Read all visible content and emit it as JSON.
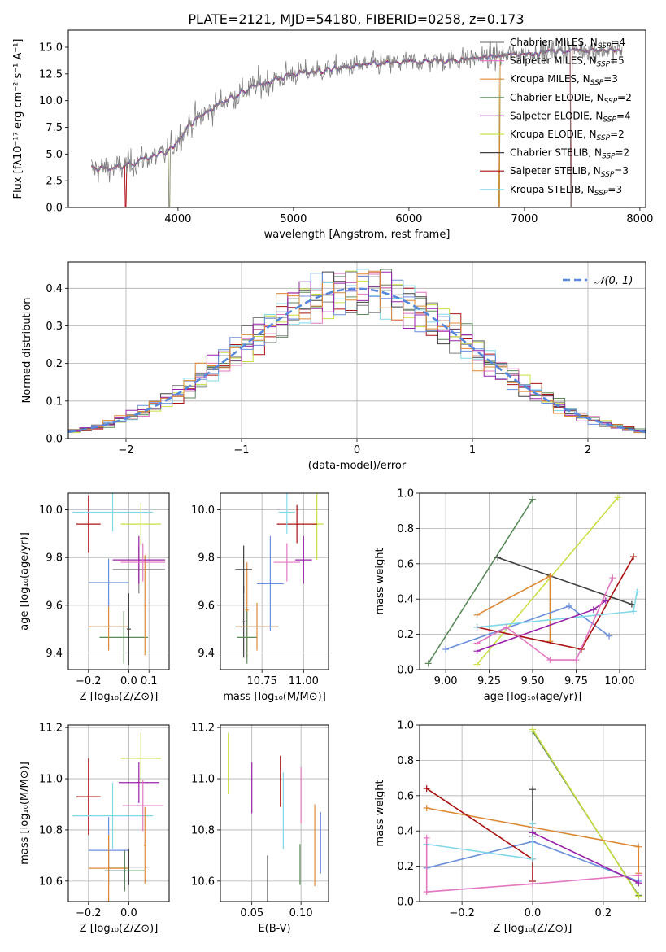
{
  "figure": {
    "title": "PLATE=2121, MJD=54180, FIBERID=0258, z=0.173"
  },
  "colors": {
    "data": "#808080",
    "model_palette": [
      "#808080",
      "#e377c2",
      "#dd8833",
      "#5a8a5a",
      "#9922aa",
      "#ccdd44",
      "#404040",
      "#aa1111",
      "#80d8e8",
      "#6a8fdd"
    ],
    "normal_curve": "#5588dd",
    "grid": "#b0b0b0"
  },
  "chart_data": [
    {
      "id": "spectrum",
      "type": "line",
      "title": "PLATE=2121, MJD=54180, FIBERID=0258, z=0.173",
      "xlabel": "wavelength [Angstrom, rest frame]",
      "ylabel": "Flux [fλ10⁻¹⁷ erg cm⁻² s⁻¹ A⁻¹]",
      "xlim": [
        3050,
        8050
      ],
      "ylim": [
        0,
        16.6
      ],
      "xticks": [
        "4000",
        "5000",
        "6000",
        "7000",
        "8000"
      ],
      "yticks": [
        "0.0",
        "2.5",
        "5.0",
        "7.5",
        "10.0",
        "12.5",
        "15.0"
      ],
      "grid": false,
      "legend_position": "top-right",
      "series": [
        {
          "name": "Chabrier MILES, N_SSP=4",
          "color": "#808080"
        },
        {
          "name": "Salpeter MILES, N_SSP=5",
          "color": "#e377c2"
        },
        {
          "name": "Kroupa MILES, N_SSP=3",
          "color": "#dd8833"
        },
        {
          "name": "Chabrier ELODIE, N_SSP=2",
          "color": "#5a8a5a"
        },
        {
          "name": "Salpeter ELODIE, N_SSP=4",
          "color": "#9922aa"
        },
        {
          "name": "Kroupa ELODIE, N_SSP=2",
          "color": "#ccdd44"
        },
        {
          "name": "Chabrier STELIB, N_SSP=2",
          "color": "#404040"
        },
        {
          "name": "Salpeter STELIB, N_SSP=3",
          "color": "#aa1111"
        },
        {
          "name": "Kroupa STELIB, N_SSP=3",
          "color": "#80d8e8"
        }
      ],
      "continuum": [
        [
          3250,
          3.6
        ],
        [
          3500,
          3.7
        ],
        [
          3700,
          4.6
        ],
        [
          3900,
          5.0
        ],
        [
          4100,
          7.8
        ],
        [
          4400,
          10.0
        ],
        [
          4700,
          11.5
        ],
        [
          5000,
          12.5
        ],
        [
          5300,
          12.9
        ],
        [
          5600,
          13.3
        ],
        [
          6000,
          13.6
        ],
        [
          6400,
          13.8
        ],
        [
          6800,
          14.2
        ],
        [
          7200,
          14.6
        ],
        [
          7600,
          14.8
        ],
        [
          7850,
          14.6
        ]
      ],
      "data_range": [
        3250,
        7850
      ],
      "drops": [
        {
          "x": 3545,
          "width": 6,
          "depth_to": 0,
          "models": [
            1,
            2,
            6,
            7
          ]
        },
        {
          "x": 3925,
          "width": 4,
          "depth_to": 0,
          "models": [
            5,
            0
          ]
        },
        {
          "x": 6780,
          "width": 5,
          "depth_to": 0,
          "models": [
            2,
            3,
            5
          ]
        },
        {
          "x": 7405,
          "width": 6,
          "depth_to": 0,
          "models": [
            1,
            2,
            7,
            0
          ]
        }
      ]
    },
    {
      "id": "residuals",
      "type": "step",
      "xlabel": "(data-model)/error",
      "ylabel": "Normed distribution",
      "xlim": [
        -2.5,
        2.5
      ],
      "ylim": [
        0,
        0.47
      ],
      "xticks": [
        "−2",
        "−1",
        "0",
        "1",
        "2"
      ],
      "yticks": [
        "0.0",
        "0.1",
        "0.2",
        "0.3",
        "0.4"
      ],
      "grid": true,
      "legend_position": "top-right",
      "legend": [
        {
          "name": "𝒩(0, 1)",
          "style": "dashed"
        }
      ],
      "bin_width": 0.1,
      "reference_curve": "normal(0,1)"
    },
    {
      "id": "age-vs-Z",
      "type": "errorbar",
      "xlabel": "Z [log₁₀(Z/Z⊙)]",
      "ylabel": "age  [log₁₀(age/yr)]",
      "xlim": [
        -0.3,
        0.2
      ],
      "ylim": [
        9.33,
        10.07
      ],
      "xticks": [
        "−0.2",
        "0.0",
        "0.1"
      ],
      "yticks": [
        "9.4",
        "9.6",
        "9.8",
        "10.0"
      ],
      "grid": true,
      "points": [
        {
          "x": -0.025,
          "y": 9.465,
          "xerr": 0.12,
          "yerr": 0.11,
          "c": 3
        },
        {
          "x": 0.0,
          "y": 9.5,
          "xerr": 0.01,
          "yerr": 0.15,
          "c": 6
        },
        {
          "x": -0.1,
          "y": 9.51,
          "xerr": 0.1,
          "yerr": 0.1,
          "c": 2
        },
        {
          "x": -0.1,
          "y": 9.695,
          "xerr": 0.1,
          "yerr": 0.1,
          "c": 9
        },
        {
          "x": 0.05,
          "y": 9.75,
          "xerr": 0.13,
          "yerr": 0.1,
          "c": 0
        },
        {
          "x": 0.08,
          "y": 9.6,
          "xerr": 0.005,
          "yerr": 0.21,
          "c": 2
        },
        {
          "x": 0.05,
          "y": 9.79,
          "xerr": 0.13,
          "yerr": 0.1,
          "c": 4
        },
        {
          "x": 0.07,
          "y": 9.78,
          "xerr": 0.11,
          "yerr": 0.08,
          "c": 1
        },
        {
          "x": 0.06,
          "y": 9.94,
          "xerr": 0.1,
          "yerr": 0.09,
          "c": 5
        },
        {
          "x": -0.2,
          "y": 9.94,
          "xerr": 0.06,
          "yerr": 0.12,
          "c": 7
        },
        {
          "x": -0.08,
          "y": 9.99,
          "xerr": 0.2,
          "yerr": 0.08,
          "c": 8
        }
      ]
    },
    {
      "id": "age-vs-mass",
      "type": "errorbar",
      "xlabel": "mass [log₁₀(M/M⊙)]",
      "xlim": [
        10.5,
        11.15
      ],
      "ylim": [
        9.33,
        10.07
      ],
      "xticks": [
        "10.75",
        "11.00"
      ],
      "yticks": [
        "9.4",
        "9.6",
        "9.8",
        "10.0"
      ],
      "grid": true,
      "points": [
        {
          "x": 10.66,
          "y": 9.58,
          "xerr": 0.01,
          "yerr": 0.2,
          "c": 2
        },
        {
          "x": 10.64,
          "y": 9.53,
          "xerr": 0.01,
          "yerr": 0.15,
          "c": 6
        },
        {
          "x": 10.66,
          "y": 9.465,
          "xerr": 0.06,
          "yerr": 0.11,
          "c": 3
        },
        {
          "x": 10.72,
          "y": 9.51,
          "xerr": 0.13,
          "yerr": 0.1,
          "c": 2
        },
        {
          "x": 10.64,
          "y": 9.75,
          "xerr": 0.05,
          "yerr": 0.1,
          "c": 6
        },
        {
          "x": 10.8,
          "y": 9.69,
          "xerr": 0.08,
          "yerr": 0.2,
          "c": 9
        },
        {
          "x": 10.9,
          "y": 9.78,
          "xerr": 0.08,
          "yerr": 0.08,
          "c": 1
        },
        {
          "x": 11.0,
          "y": 9.79,
          "xerr": 0.05,
          "yerr": 0.1,
          "c": 4
        },
        {
          "x": 11.08,
          "y": 9.94,
          "xerr": 0.04,
          "yerr": 0.15,
          "c": 5
        },
        {
          "x": 10.96,
          "y": 9.94,
          "xerr": 0.12,
          "yerr": 0.08,
          "c": 7
        },
        {
          "x": 10.9,
          "y": 9.99,
          "xerr": 0.05,
          "yerr": 0.09,
          "c": 8
        }
      ]
    },
    {
      "id": "weight-vs-age",
      "type": "line",
      "xlabel": "age  [log₁₀(age/yr)]",
      "ylabel": "mass weight",
      "xlim": [
        8.85,
        10.15
      ],
      "ylim": [
        0,
        1.0
      ],
      "xticks": [
        "9.00",
        "9.25",
        "9.50",
        "9.75",
        "10.00"
      ],
      "yticks": [
        "0.0",
        "0.2",
        "0.4",
        "0.6",
        "0.8",
        "1.0"
      ],
      "grid": true,
      "series": [
        {
          "c": 3,
          "points": [
            [
              8.9,
              0.035
            ],
            [
              9.5,
              0.965
            ]
          ]
        },
        {
          "c": 5,
          "points": [
            [
              9.18,
              0.03
            ],
            [
              9.99,
              0.975
            ]
          ]
        },
        {
          "c": 6,
          "points": [
            [
              9.3,
              0.635
            ],
            [
              10.07,
              0.37
            ]
          ]
        },
        {
          "c": 2,
          "points": [
            [
              9.18,
              0.31
            ],
            [
              9.6,
              0.53
            ],
            [
              9.6,
              0.16
            ]
          ]
        },
        {
          "c": 9,
          "points": [
            [
              9.0,
              0.115
            ],
            [
              9.71,
              0.36
            ],
            [
              9.94,
              0.19
            ]
          ]
        },
        {
          "c": 7,
          "points": [
            [
              9.18,
              0.24
            ],
            [
              9.78,
              0.115
            ],
            [
              10.08,
              0.64
            ]
          ]
        },
        {
          "c": 8,
          "points": [
            [
              9.18,
              0.24
            ],
            [
              10.08,
              0.33
            ],
            [
              10.1,
              0.44
            ]
          ]
        },
        {
          "c": 4,
          "points": [
            [
              9.18,
              0.105
            ],
            [
              9.85,
              0.34
            ],
            [
              9.92,
              0.39
            ]
          ]
        },
        {
          "c": 1,
          "points": [
            [
              9.18,
              0.15
            ],
            [
              9.35,
              0.24
            ],
            [
              9.6,
              0.055
            ],
            [
              9.75,
              0.055
            ],
            [
              9.96,
              0.52
            ]
          ]
        }
      ]
    },
    {
      "id": "mass-vs-Z",
      "type": "errorbar",
      "xlabel": "Z [log₁₀(Z/Z⊙)]",
      "ylabel": "mass [log₁₀(M/M⊙)]",
      "xlim": [
        -0.3,
        0.2
      ],
      "ylim": [
        10.52,
        11.21
      ],
      "xticks": [
        "−0.2",
        "0.0"
      ],
      "yticks": [
        "10.6",
        "10.8",
        "11.0",
        "11.2"
      ],
      "grid": true,
      "points": [
        {
          "x": -0.2,
          "y": 10.93,
          "xerr": 0.06,
          "yerr": 0.15,
          "c": 7
        },
        {
          "x": -0.08,
          "y": 10.855,
          "xerr": 0.2,
          "yerr": 0.13,
          "c": 8
        },
        {
          "x": -0.1,
          "y": 10.72,
          "xerr": 0.1,
          "yerr": 0.13,
          "c": 9
        },
        {
          "x": -0.1,
          "y": 10.65,
          "xerr": 0.1,
          "yerr": 0.13,
          "c": 2
        },
        {
          "x": 0.0,
          "y": 10.655,
          "xerr": 0.1,
          "yerr": 0.07,
          "c": 6
        },
        {
          "x": -0.02,
          "y": 10.64,
          "xerr": 0.1,
          "yerr": 0.08,
          "c": 3
        },
        {
          "x": 0.05,
          "y": 10.985,
          "xerr": 0.1,
          "yerr": 0.08,
          "c": 4
        },
        {
          "x": 0.06,
          "y": 11.08,
          "xerr": 0.1,
          "yerr": 0.1,
          "c": 5
        },
        {
          "x": 0.07,
          "y": 10.895,
          "xerr": 0.1,
          "yerr": 0.1,
          "c": 1
        },
        {
          "x": 0.08,
          "y": 10.74,
          "xerr": 0.005,
          "yerr": 0.15,
          "c": 2
        }
      ]
    },
    {
      "id": "mass-vs-EBV",
      "type": "errorbar",
      "xlabel": "E(B-V)",
      "xlim": [
        0.018,
        0.128
      ],
      "ylim": [
        10.52,
        11.21
      ],
      "xticks": [
        "0.05",
        "0.10"
      ],
      "yticks": [
        "10.6",
        "10.8",
        "11.0",
        "11.2"
      ],
      "grid": true,
      "points": [
        {
          "x": 0.026,
          "y": 11.06,
          "yerr": 0.12,
          "c": 5
        },
        {
          "x": 0.05,
          "y": 10.965,
          "yerr": 0.1,
          "c": 4
        },
        {
          "x": 0.066,
          "y": 10.6,
          "yerr": 0.1,
          "c": 6
        },
        {
          "x": 0.079,
          "y": 10.99,
          "yerr": 0.1,
          "c": 7
        },
        {
          "x": 0.082,
          "y": 10.875,
          "yerr": 0.15,
          "c": 8
        },
        {
          "x": 0.099,
          "y": 10.665,
          "yerr": 0.08,
          "c": 3
        },
        {
          "x": 0.1,
          "y": 10.935,
          "yerr": 0.11,
          "c": 1
        },
        {
          "x": 0.114,
          "y": 10.74,
          "yerr": 0.16,
          "c": 2
        },
        {
          "x": 0.12,
          "y": 10.75,
          "yerr": 0.12,
          "c": 9
        }
      ]
    },
    {
      "id": "weight-vs-Z",
      "type": "line",
      "xlabel": "Z [log₁₀(Z/Z⊙)]",
      "ylabel": "mass weight",
      "xlim": [
        -0.32,
        0.32
      ],
      "ylim": [
        0,
        1.0
      ],
      "xticks": [
        "−0.2",
        "0.0",
        "0.2"
      ],
      "yticks": [
        "0.0",
        "0.2",
        "0.4",
        "0.6",
        "0.8",
        "1.0"
      ],
      "grid": true,
      "series": [
        {
          "c": 3,
          "points": [
            [
              0.0,
              0.965
            ],
            [
              0.3,
              0.035
            ]
          ]
        },
        {
          "c": 5,
          "points": [
            [
              0.0,
              0.975
            ],
            [
              0.3,
              0.03
            ]
          ]
        },
        {
          "c": 6,
          "points": [
            [
              0.0,
              0.635
            ],
            [
              0.0,
              0.37
            ]
          ]
        },
        {
          "c": 2,
          "points": [
            [
              -0.3,
              0.53
            ],
            [
              0.3,
              0.31
            ],
            [
              0.3,
              0.16
            ]
          ]
        },
        {
          "c": 9,
          "points": [
            [
              -0.3,
              0.19
            ],
            [
              0.0,
              0.34
            ],
            [
              0.3,
              0.115
            ]
          ]
        },
        {
          "c": 7,
          "points": [
            [
              -0.3,
              0.64
            ],
            [
              0.0,
              0.24
            ],
            [
              0.0,
              0.115
            ]
          ]
        },
        {
          "c": 8,
          "points": [
            [
              -0.3,
              0.325
            ],
            [
              0.0,
              0.24
            ],
            [
              0.0,
              0.44
            ]
          ]
        },
        {
          "c": 4,
          "points": [
            [
              0.0,
              0.39
            ],
            [
              0.3,
              0.105
            ]
          ]
        },
        {
          "c": 1,
          "points": [
            [
              -0.3,
              0.36
            ],
            [
              -0.3,
              0.055
            ],
            [
              0.0,
              0.1
            ],
            [
              0.3,
              0.15
            ]
          ]
        }
      ]
    }
  ]
}
